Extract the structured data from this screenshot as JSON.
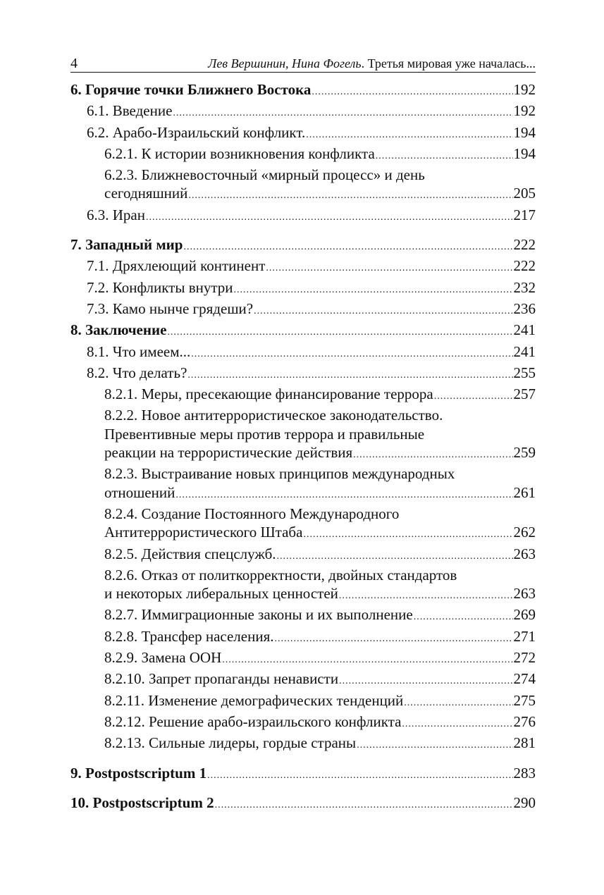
{
  "header": {
    "page_number": "4",
    "authors": "Лев Вершинин, Нина Фогель",
    "book_title": ". Третья мировая уже началась..."
  },
  "toc": [
    {
      "level": 0,
      "lines": [
        "6. Горячие точки Ближнего Востока"
      ],
      "page": "192"
    },
    {
      "level": 1,
      "lines": [
        "6.1. Введение"
      ],
      "page": "192"
    },
    {
      "level": 1,
      "lines": [
        "6.2. Арабо-Израильский конфликт."
      ],
      "page": "194"
    },
    {
      "level": 2,
      "lines": [
        "6.2.1. К истории возникновения конфликта"
      ],
      "page": "194"
    },
    {
      "level": 2,
      "lines": [
        "6.2.3. Ближневосточный «мирный процесс» и день",
        "сегодняшний"
      ],
      "page": "205"
    },
    {
      "level": 1,
      "lines": [
        "6.3. Иран"
      ],
      "page": "217"
    },
    {
      "level": 0,
      "gap": true,
      "lines": [
        "7. Западный мир"
      ],
      "page": "222"
    },
    {
      "level": 1,
      "lines": [
        "7.1. Дряхлеющий континент"
      ],
      "page": "222"
    },
    {
      "level": 1,
      "lines": [
        "7.2. Конфликты внутри"
      ],
      "page": "232"
    },
    {
      "level": 1,
      "lines": [
        "7.3. Камо нынче грядеши?"
      ],
      "page": "236"
    },
    {
      "level": 0,
      "lines": [
        "8. Заключение"
      ],
      "page": "241"
    },
    {
      "level": 1,
      "lines": [
        "8.1. Что имеем..."
      ],
      "page": "241"
    },
    {
      "level": 1,
      "lines": [
        "8.2. Что делать?"
      ],
      "page": "255"
    },
    {
      "level": 2,
      "lines": [
        "8.2.1. Меры, пресекающие финансирование террора"
      ],
      "page": "257"
    },
    {
      "level": 2,
      "lines": [
        "8.2.2. Новое антитеррористическое законодательство.",
        "Превентивные меры против террора и правильные",
        "реакции на террористические действия"
      ],
      "page": "259"
    },
    {
      "level": 2,
      "lines": [
        "8.2.3. Выстраивание новых принципов международных",
        "отношений"
      ],
      "page": "261"
    },
    {
      "level": 2,
      "lines": [
        "8.2.4. Создание Постоянного Международного",
        "Антитеррористического Штаба"
      ],
      "page": "262"
    },
    {
      "level": 2,
      "lines": [
        "8.2.5. Действия спецслужб."
      ],
      "page": "263"
    },
    {
      "level": 2,
      "lines": [
        "8.2.6. Отказ от политкорректности, двойных стандартов",
        "и некоторых либеральных ценностей"
      ],
      "page": "263"
    },
    {
      "level": 2,
      "lines": [
        "8.2.7. Иммиграционные законы и их выполнение"
      ],
      "page": "269"
    },
    {
      "level": 2,
      "lines": [
        "8.2.8. Трансфер населения."
      ],
      "page": "271"
    },
    {
      "level": 2,
      "lines": [
        "8.2.9. Замена ООН"
      ],
      "page": "272"
    },
    {
      "level": 2,
      "lines": [
        "8.2.10. Запрет пропаганды ненависти"
      ],
      "page": "274"
    },
    {
      "level": 2,
      "lines": [
        "8.2.11. Изменение демографических тенденций"
      ],
      "page": "275"
    },
    {
      "level": 2,
      "lines": [
        "8.2.12. Решение арабо-израильского конфликта"
      ],
      "page": "276"
    },
    {
      "level": 2,
      "lines": [
        "8.2.13. Сильные лидеры, гордые страны"
      ],
      "page": "281"
    },
    {
      "level": 0,
      "gap": true,
      "lines": [
        "9. Postpostscriptum 1"
      ],
      "page": "283"
    },
    {
      "level": 0,
      "gap": true,
      "lines": [
        "10. Postpostscriptum 2"
      ],
      "page": "290"
    }
  ]
}
